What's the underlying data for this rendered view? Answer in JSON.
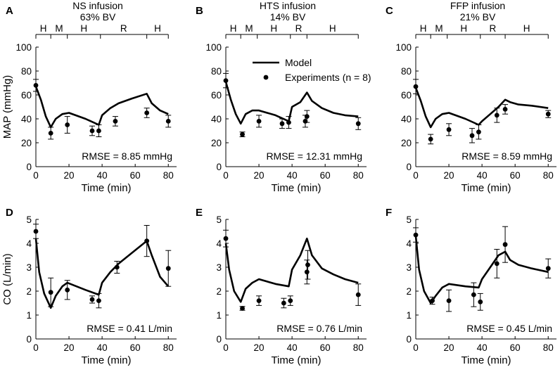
{
  "xlabel": "Time (min)",
  "legend": {
    "model": "Model",
    "experiments": "Experiments (n = 8)"
  },
  "colors": {
    "line": "#000000",
    "point": "#000000",
    "background": "#ffffff"
  },
  "chart_data": [
    {
      "letter": "A",
      "row": 0,
      "col": 0,
      "type": "line",
      "title": [
        "NS infusion",
        "63% BV"
      ],
      "ylabel": "MAP (mmHg)",
      "ylim": [
        0,
        100
      ],
      "yticks": [
        0,
        20,
        40,
        60,
        80,
        100
      ],
      "xlim": [
        0,
        85
      ],
      "xticks": [
        0,
        20,
        40,
        60,
        80
      ],
      "phases": {
        "boundaries": [
          0,
          9,
          19,
          39,
          67,
          80
        ],
        "labels": [
          "H",
          "M",
          "H",
          "R",
          "H"
        ]
      },
      "rmse": "RMSE = 8.85 mmHg",
      "model": [
        [
          0,
          67
        ],
        [
          3,
          56
        ],
        [
          6,
          42
        ],
        [
          9,
          33
        ],
        [
          12,
          40
        ],
        [
          16,
          44
        ],
        [
          20,
          45
        ],
        [
          30,
          40
        ],
        [
          38,
          35
        ],
        [
          40,
          43
        ],
        [
          45,
          49
        ],
        [
          50,
          53
        ],
        [
          58,
          57
        ],
        [
          67,
          61
        ],
        [
          70,
          53
        ],
        [
          75,
          47
        ],
        [
          80,
          44
        ]
      ],
      "experiments": [
        {
          "x": 0,
          "y": 68,
          "err": 5
        },
        {
          "x": 9,
          "y": 28,
          "err": 5
        },
        {
          "x": 19,
          "y": 35,
          "err": 7
        },
        {
          "x": 34,
          "y": 30,
          "err": 4
        },
        {
          "x": 38,
          "y": 30,
          "err": 5
        },
        {
          "x": 48,
          "y": 38,
          "err": 4
        },
        {
          "x": 67,
          "y": 45,
          "err": 4
        },
        {
          "x": 80,
          "y": 38,
          "err": 5
        }
      ],
      "show_legend": false
    },
    {
      "letter": "B",
      "row": 0,
      "col": 1,
      "type": "line",
      "title": [
        "HTS infusion",
        "14% BV"
      ],
      "ylabel": "",
      "ylim": [
        0,
        100
      ],
      "yticks": [
        0,
        20,
        40,
        60,
        80,
        100
      ],
      "xlim": [
        0,
        85
      ],
      "xticks": [
        0,
        20,
        40,
        60,
        80
      ],
      "phases": {
        "boundaries": [
          0,
          9,
          19,
          39,
          49,
          80
        ],
        "labels": [
          "H",
          "M",
          "H",
          "R",
          "H"
        ]
      },
      "rmse": "RMSE = 12.31 mmHg",
      "model": [
        [
          0,
          71
        ],
        [
          3,
          56
        ],
        [
          6,
          44
        ],
        [
          9,
          36
        ],
        [
          12,
          44
        ],
        [
          16,
          47
        ],
        [
          20,
          47
        ],
        [
          30,
          43
        ],
        [
          38,
          38
        ],
        [
          40,
          50
        ],
        [
          45,
          54
        ],
        [
          49,
          62
        ],
        [
          52,
          55
        ],
        [
          58,
          49
        ],
        [
          65,
          45
        ],
        [
          72,
          43
        ],
        [
          80,
          42
        ]
      ],
      "experiments": [
        {
          "x": 0,
          "y": 72,
          "err": 6
        },
        {
          "x": 10,
          "y": 27,
          "err": 2
        },
        {
          "x": 20,
          "y": 38,
          "err": 5
        },
        {
          "x": 34,
          "y": 36,
          "err": 4
        },
        {
          "x": 38,
          "y": 37,
          "err": 5
        },
        {
          "x": 48,
          "y": 38,
          "err": 5
        },
        {
          "x": 49,
          "y": 42,
          "err": 5
        },
        {
          "x": 80,
          "y": 36,
          "err": 5
        }
      ],
      "show_legend": true
    },
    {
      "letter": "C",
      "row": 0,
      "col": 2,
      "type": "line",
      "title": [
        "FFP infusion",
        "21% BV"
      ],
      "ylabel": "",
      "ylim": [
        0,
        100
      ],
      "yticks": [
        0,
        20,
        40,
        60,
        80,
        100
      ],
      "xlim": [
        0,
        85
      ],
      "xticks": [
        0,
        20,
        40,
        60,
        80
      ],
      "phases": {
        "boundaries": [
          0,
          9,
          19,
          39,
          54,
          80
        ],
        "labels": [
          "H",
          "M",
          "H",
          "R",
          "H"
        ]
      },
      "rmse": "RMSE = 8.59 mmHg",
      "model": [
        [
          0,
          66
        ],
        [
          3,
          55
        ],
        [
          6,
          42
        ],
        [
          9,
          33
        ],
        [
          12,
          40
        ],
        [
          16,
          44
        ],
        [
          20,
          45
        ],
        [
          30,
          40
        ],
        [
          38,
          35
        ],
        [
          40,
          38
        ],
        [
          45,
          44
        ],
        [
          50,
          50
        ],
        [
          54,
          56
        ],
        [
          57,
          54
        ],
        [
          62,
          52
        ],
        [
          70,
          51
        ],
        [
          80,
          49
        ]
      ],
      "experiments": [
        {
          "x": 0,
          "y": 67,
          "err": 6
        },
        {
          "x": 9,
          "y": 23,
          "err": 4
        },
        {
          "x": 20,
          "y": 31,
          "err": 5
        },
        {
          "x": 34,
          "y": 26,
          "err": 6
        },
        {
          "x": 38,
          "y": 29,
          "err": 6
        },
        {
          "x": 49,
          "y": 43,
          "err": 6
        },
        {
          "x": 54,
          "y": 48,
          "err": 4
        },
        {
          "x": 80,
          "y": 44,
          "err": 3
        }
      ],
      "show_legend": false
    },
    {
      "letter": "D",
      "row": 1,
      "col": 0,
      "type": "line",
      "title": [],
      "ylabel": "CO (L/min)",
      "ylim": [
        0,
        5
      ],
      "yticks": [
        0,
        1,
        2,
        3,
        4,
        5
      ],
      "xlim": [
        0,
        85
      ],
      "xticks": [
        0,
        20,
        40,
        60,
        80
      ],
      "phases": null,
      "rmse": "RMSE = 0.41 L/min",
      "model": [
        [
          0,
          4.2
        ],
        [
          2,
          2.8
        ],
        [
          5,
          1.9
        ],
        [
          9,
          1.3
        ],
        [
          12,
          1.8
        ],
        [
          16,
          2.2
        ],
        [
          19,
          2.35
        ],
        [
          30,
          2.05
        ],
        [
          38,
          1.85
        ],
        [
          40,
          2.35
        ],
        [
          45,
          2.8
        ],
        [
          50,
          3.15
        ],
        [
          58,
          3.6
        ],
        [
          67,
          4.1
        ],
        [
          70,
          3.5
        ],
        [
          75,
          2.6
        ],
        [
          80,
          2.2
        ]
      ],
      "experiments": [
        {
          "x": 0,
          "y": 4.5,
          "err": 0.3
        },
        {
          "x": 9,
          "y": 1.95,
          "err": 0.6
        },
        {
          "x": 19,
          "y": 2.05,
          "err": 0.4
        },
        {
          "x": 34,
          "y": 1.65,
          "err": 0.15
        },
        {
          "x": 38,
          "y": 1.6,
          "err": 0.3
        },
        {
          "x": 49,
          "y": 3.0,
          "err": 0.25
        },
        {
          "x": 67,
          "y": 4.1,
          "err": 0.65
        },
        {
          "x": 80,
          "y": 2.95,
          "err": 0.75
        }
      ],
      "show_legend": false
    },
    {
      "letter": "E",
      "row": 1,
      "col": 1,
      "type": "line",
      "title": [],
      "ylabel": "",
      "ylim": [
        0,
        5
      ],
      "yticks": [
        0,
        1,
        2,
        3,
        4,
        5
      ],
      "xlim": [
        0,
        85
      ],
      "xticks": [
        0,
        20,
        40,
        60,
        80
      ],
      "phases": null,
      "rmse": "RMSE = 0.76 L/min",
      "model": [
        [
          0,
          4.0
        ],
        [
          2,
          2.9
        ],
        [
          5,
          2.0
        ],
        [
          9,
          1.55
        ],
        [
          12,
          2.1
        ],
        [
          16,
          2.35
        ],
        [
          20,
          2.5
        ],
        [
          30,
          2.3
        ],
        [
          38,
          2.2
        ],
        [
          40,
          2.9
        ],
        [
          45,
          3.5
        ],
        [
          49,
          4.2
        ],
        [
          52,
          3.5
        ],
        [
          58,
          2.95
        ],
        [
          65,
          2.7
        ],
        [
          72,
          2.5
        ],
        [
          80,
          2.35
        ]
      ],
      "experiments": [
        {
          "x": 0,
          "y": 4.2,
          "err": 0.35
        },
        {
          "x": 10,
          "y": 1.28,
          "err": 0.08
        },
        {
          "x": 20,
          "y": 1.6,
          "err": 0.2
        },
        {
          "x": 35,
          "y": 1.5,
          "err": 0.2
        },
        {
          "x": 39,
          "y": 1.6,
          "err": 0.2
        },
        {
          "x": 49,
          "y": 2.8,
          "err": 0.5
        },
        {
          "x": 49.5,
          "y": 3.1,
          "err": 0.6
        },
        {
          "x": 80,
          "y": 1.85,
          "err": 0.45
        }
      ],
      "show_legend": false
    },
    {
      "letter": "F",
      "row": 1,
      "col": 2,
      "type": "line",
      "title": [],
      "ylabel": "",
      "ylim": [
        0,
        5
      ],
      "yticks": [
        0,
        1,
        2,
        3,
        4,
        5
      ],
      "xlim": [
        0,
        85
      ],
      "xticks": [
        0,
        20,
        40,
        60,
        80
      ],
      "phases": null,
      "rmse": "RMSE = 0.45 L/min",
      "model": [
        [
          0,
          4.3
        ],
        [
          2,
          2.9
        ],
        [
          5,
          2.0
        ],
        [
          9,
          1.5
        ],
        [
          12,
          1.8
        ],
        [
          16,
          2.15
        ],
        [
          20,
          2.3
        ],
        [
          30,
          2.2
        ],
        [
          38,
          2.15
        ],
        [
          40,
          2.5
        ],
        [
          45,
          3.0
        ],
        [
          50,
          3.5
        ],
        [
          54,
          3.65
        ],
        [
          57,
          3.3
        ],
        [
          62,
          3.1
        ],
        [
          70,
          2.95
        ],
        [
          80,
          2.8
        ]
      ],
      "experiments": [
        {
          "x": 0,
          "y": 4.35,
          "err": 0.3
        },
        {
          "x": 10,
          "y": 1.6,
          "err": 0.15
        },
        {
          "x": 20,
          "y": 1.6,
          "err": 0.45
        },
        {
          "x": 35,
          "y": 1.85,
          "err": 0.5
        },
        {
          "x": 39,
          "y": 1.55,
          "err": 0.35
        },
        {
          "x": 49,
          "y": 3.15,
          "err": 0.6
        },
        {
          "x": 54,
          "y": 3.95,
          "err": 0.75
        },
        {
          "x": 80,
          "y": 2.95,
          "err": 0.4
        }
      ],
      "show_legend": false
    }
  ]
}
